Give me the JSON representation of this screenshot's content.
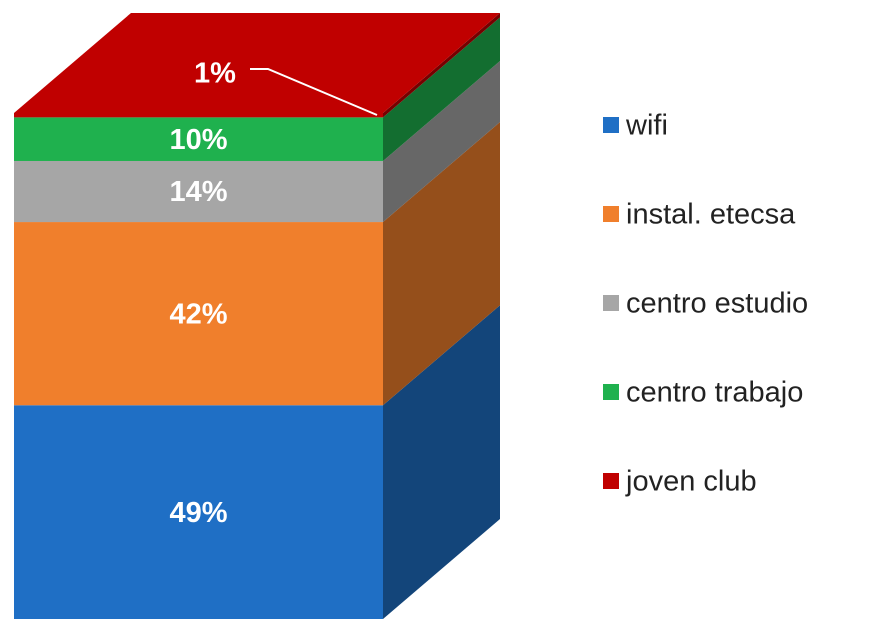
{
  "chart_data": {
    "type": "bar",
    "stacked": true,
    "categories": [
      null
    ],
    "series": [
      {
        "name": "wifi",
        "color": "#1f6fc5",
        "values": [
          49
        ],
        "value_labels": [
          "49%"
        ]
      },
      {
        "name": "instal. etecsa",
        "color": "#f07f2c",
        "values": [
          42
        ],
        "value_labels": [
          "42%"
        ]
      },
      {
        "name": "centro estudio",
        "color": "#a6a6a6",
        "values": [
          14
        ],
        "value_labels": [
          "14%"
        ]
      },
      {
        "name": "centro trabajo",
        "color": "#1fb14e",
        "values": [
          10
        ],
        "value_labels": [
          "10%"
        ]
      },
      {
        "name": "joven club",
        "color": "#c00000",
        "values": [
          1
        ],
        "value_labels": [
          "1%"
        ]
      }
    ],
    "legend": "right"
  }
}
